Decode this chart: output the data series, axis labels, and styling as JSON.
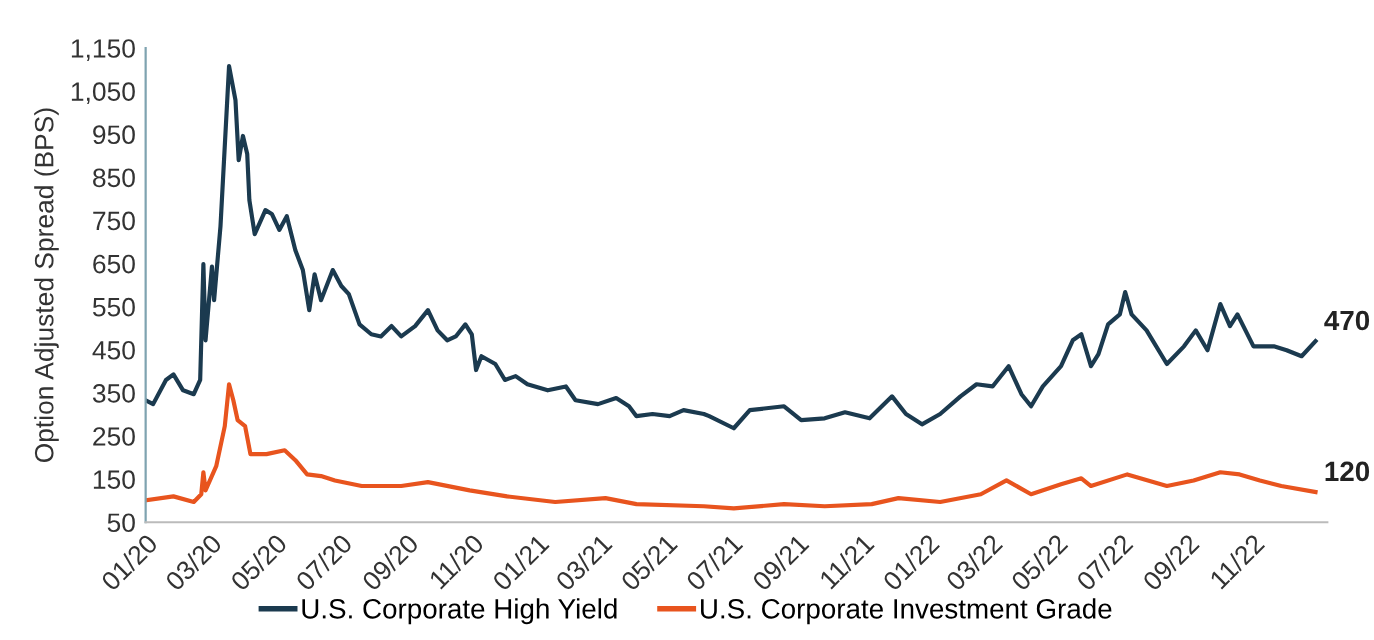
{
  "chart_data": {
    "type": "line",
    "ylabel": "Option Adjusted Spread (BPS)",
    "xlim": [
      "2020-01-01",
      "2023-01-10"
    ],
    "xticks": [
      {
        "value": "2020-01-01",
        "label": "01/20"
      },
      {
        "value": "2020-03-01",
        "label": "03/20"
      },
      {
        "value": "2020-05-01",
        "label": "05/20"
      },
      {
        "value": "2020-07-01",
        "label": "07/20"
      },
      {
        "value": "2020-09-01",
        "label": "09/20"
      },
      {
        "value": "2020-11-01",
        "label": "11/20"
      },
      {
        "value": "2021-01-01",
        "label": "01/21"
      },
      {
        "value": "2021-03-01",
        "label": "03/21"
      },
      {
        "value": "2021-05-01",
        "label": "05/21"
      },
      {
        "value": "2021-07-01",
        "label": "07/21"
      },
      {
        "value": "2021-09-01",
        "label": "09/21"
      },
      {
        "value": "2021-11-01",
        "label": "11/21"
      },
      {
        "value": "2022-01-01",
        "label": "01/22"
      },
      {
        "value": "2022-03-01",
        "label": "03/22"
      },
      {
        "value": "2022-05-01",
        "label": "05/22"
      },
      {
        "value": "2022-07-01",
        "label": "07/22"
      },
      {
        "value": "2022-09-01",
        "label": "09/22"
      },
      {
        "value": "2022-11-01",
        "label": "11/22"
      }
    ],
    "ylim": [
      50,
      1150
    ],
    "yticks": [
      50,
      150,
      250,
      350,
      450,
      550,
      650,
      750,
      850,
      950,
      {
        "value": 1050,
        "label": "1,050"
      },
      {
        "value": 1150,
        "label": "1,150"
      }
    ],
    "grid": false,
    "legend": "bottom",
    "marker": "none",
    "line_style": "solid",
    "annotations": [
      {
        "text": "470",
        "x": "2022-12-30",
        "y": 470
      },
      {
        "text": "120",
        "x": "2022-12-30",
        "y": 120
      }
    ],
    "series": [
      {
        "name": "U.S. Corporate High Yield",
        "color": "#1b3a4f",
        "x": [
          "2020-01-01",
          "2020-01-08",
          "2020-01-20",
          "2020-01-27",
          "2020-02-05",
          "2020-02-15",
          "2020-02-21",
          "2020-02-24",
          "2020-02-26",
          "2020-03-03",
          "2020-03-05",
          "2020-03-11",
          "2020-03-19",
          "2020-03-25",
          "2020-03-28",
          "2020-04-01",
          "2020-04-05",
          "2020-04-07",
          "2020-04-12",
          "2020-04-22",
          "2020-04-28",
          "2020-05-05",
          "2020-05-12",
          "2020-05-20",
          "2020-05-27",
          "2020-06-02",
          "2020-06-07",
          "2020-06-13",
          "2020-06-24",
          "2020-07-02",
          "2020-07-09",
          "2020-07-19",
          "2020-07-30",
          "2020-08-08",
          "2020-08-18",
          "2020-08-27",
          "2020-09-09",
          "2020-09-21",
          "2020-09-30",
          "2020-10-09",
          "2020-10-17",
          "2020-10-26",
          "2020-11-01",
          "2020-11-05",
          "2020-11-10",
          "2020-11-23",
          "2020-12-02",
          "2020-12-12",
          "2020-12-23",
          "2021-01-11",
          "2021-01-28",
          "2021-02-06",
          "2021-02-27",
          "2021-03-16",
          "2021-03-28",
          "2021-04-04",
          "2021-04-19",
          "2021-05-05",
          "2021-05-18",
          "2021-06-06",
          "2021-06-11",
          "2021-07-04",
          "2021-07-19",
          "2021-08-20",
          "2021-09-05",
          "2021-09-27",
          "2021-10-16",
          "2021-11-08",
          "2021-11-29",
          "2021-12-12",
          "2021-12-27",
          "2022-01-13",
          "2022-02-01",
          "2022-02-16",
          "2022-03-03",
          "2022-03-18",
          "2022-03-30",
          "2022-04-08",
          "2022-04-19",
          "2022-05-06",
          "2022-05-17",
          "2022-05-25",
          "2022-06-03",
          "2022-06-10",
          "2022-06-19",
          "2022-06-30",
          "2022-07-05",
          "2022-07-11",
          "2022-07-25",
          "2022-08-13",
          "2022-08-29",
          "2022-09-09",
          "2022-09-20",
          "2022-10-02",
          "2022-10-11",
          "2022-10-18",
          "2022-11-02",
          "2022-11-21",
          "2022-12-03",
          "2022-12-17",
          "2022-12-30"
        ],
        "values": [
          333,
          324,
          380,
          393,
          356,
          347,
          380,
          649,
          472,
          643,
          565,
          737,
          1108,
          1029,
          890,
          946,
          904,
          797,
          718,
          774,
          765,
          728,
          760,
          681,
          635,
          542,
          625,
          565,
          635,
          598,
          579,
          509,
          486,
          481,
          505,
          481,
          505,
          542,
          495,
          472,
          481,
          509,
          486,
          403,
          435,
          417,
          380,
          389,
          370,
          356,
          365,
          333,
          324,
          338,
          319,
          296,
          301,
          296,
          310,
          301,
          296,
          268,
          310,
          319,
          287,
          291,
          305,
          291,
          342,
          301,
          277,
          301,
          342,
          370,
          365,
          412,
          347,
          319,
          365,
          412,
          472,
          486,
          412,
          440,
          509,
          532,
          584,
          532,
          495,
          417,
          458,
          495,
          449,
          556,
          505,
          532,
          458,
          458,
          449,
          435,
          470
        ]
      },
      {
        "name": "U.S. Corporate Investment Grade",
        "color": "#e8541e",
        "x": [
          "2020-01-01",
          "2020-01-27",
          "2020-02-15",
          "2020-02-22",
          "2020-02-24",
          "2020-02-26",
          "2020-03-07",
          "2020-03-15",
          "2020-03-19",
          "2020-03-23",
          "2020-03-27",
          "2020-04-03",
          "2020-04-08",
          "2020-04-23",
          "2020-05-10",
          "2020-05-20",
          "2020-05-31",
          "2020-06-13",
          "2020-06-26",
          "2020-07-21",
          "2020-08-27",
          "2020-09-21",
          "2020-10-30",
          "2020-12-04",
          "2021-01-18",
          "2021-03-06",
          "2021-04-04",
          "2021-06-06",
          "2021-07-04",
          "2021-08-20",
          "2021-09-27",
          "2021-11-10",
          "2021-12-05",
          "2022-01-13",
          "2022-02-20",
          "2022-03-16",
          "2022-04-08",
          "2022-05-06",
          "2022-05-25",
          "2022-06-03",
          "2022-07-07",
          "2022-08-13",
          "2022-09-07",
          "2022-10-02",
          "2022-10-20",
          "2022-11-08",
          "2022-11-28",
          "2022-12-30"
        ],
        "values": [
          101,
          110,
          97,
          115,
          166,
          124,
          180,
          273,
          370,
          333,
          287,
          273,
          208,
          208,
          217,
          194,
          161,
          157,
          147,
          134,
          134,
          143,
          124,
          110,
          97,
          106,
          92,
          87,
          82,
          92,
          87,
          92,
          106,
          97,
          115,
          147,
          115,
          138,
          152,
          134,
          161,
          134,
          147,
          166,
          161,
          147,
          134,
          120
        ]
      }
    ]
  }
}
